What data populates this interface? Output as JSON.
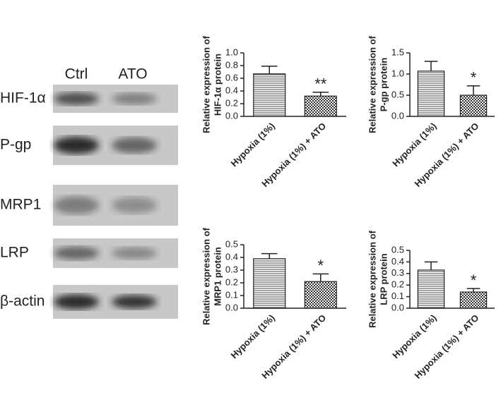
{
  "blot": {
    "columns": [
      "Ctrl",
      "ATO"
    ],
    "rows": [
      "HIF-1α",
      "P-gp",
      "MRP1",
      "LRP",
      "β-actin"
    ]
  },
  "chart_data": [
    {
      "type": "bar",
      "ylabel": [
        "Relative expression of",
        "HIF-1α protein"
      ],
      "categories": [
        "Hypoxia (1%)",
        "Hypoxia (1%) + ATO"
      ],
      "values": [
        0.67,
        0.32
      ],
      "errors": [
        0.12,
        0.06
      ],
      "significance": "**",
      "ylim": [
        0,
        1.0
      ],
      "yticks": [
        {
          "value": 0,
          "label": "0.0"
        },
        {
          "value": 0.2,
          "label": "0.2"
        },
        {
          "value": 0.4,
          "label": "0.4"
        },
        {
          "value": 0.6,
          "label": "0.6"
        },
        {
          "value": 0.8,
          "label": "0.8"
        },
        {
          "value": 1.0,
          "label": "1.0"
        }
      ]
    },
    {
      "type": "bar",
      "ylabel": [
        "Relative expression of",
        "P-gp protein"
      ],
      "categories": [
        "Hypoxia (1%)",
        "Hypoxia (1%) + ATO"
      ],
      "values": [
        1.07,
        0.5
      ],
      "errors": [
        0.23,
        0.22
      ],
      "significance": "*",
      "ylim": [
        0,
        1.5
      ],
      "yticks": [
        {
          "value": 0,
          "label": "0.0"
        },
        {
          "value": 0.5,
          "label": "0.5"
        },
        {
          "value": 1.0,
          "label": "1.0"
        },
        {
          "value": 1.5,
          "label": "1.5"
        }
      ]
    },
    {
      "type": "bar",
      "ylabel": [
        "Relative expression of",
        "MRP1 protein"
      ],
      "categories": [
        "Hypoxia (1%)",
        "Hypoxia (1%) + ATO"
      ],
      "values": [
        0.39,
        0.21
      ],
      "errors": [
        0.04,
        0.06
      ],
      "significance": "*",
      "ylim": [
        0,
        0.5
      ],
      "yticks": [
        {
          "value": 0,
          "label": "0.0"
        },
        {
          "value": 0.1,
          "label": "0.1"
        },
        {
          "value": 0.2,
          "label": "0.2"
        },
        {
          "value": 0.3,
          "label": "0.3"
        },
        {
          "value": 0.4,
          "label": "0.4"
        },
        {
          "value": 0.5,
          "label": "0.5"
        }
      ]
    },
    {
      "type": "bar",
      "ylabel": [
        "Relative expression of",
        "LRP protein"
      ],
      "categories": [
        "Hypoxia (1%)",
        "Hypoxia (1%) + ATO"
      ],
      "values": [
        0.33,
        0.14
      ],
      "errors": [
        0.07,
        0.03
      ],
      "significance": "*",
      "ylim": [
        0,
        0.5
      ],
      "yticks": [
        {
          "value": 0,
          "label": "0.0"
        },
        {
          "value": 0.1,
          "label": "0.1"
        },
        {
          "value": 0.2,
          "label": "0.2"
        },
        {
          "value": 0.3,
          "label": "0.3"
        },
        {
          "value": 0.4,
          "label": "0.4"
        },
        {
          "value": 0.5,
          "label": "0.5"
        }
      ]
    }
  ]
}
